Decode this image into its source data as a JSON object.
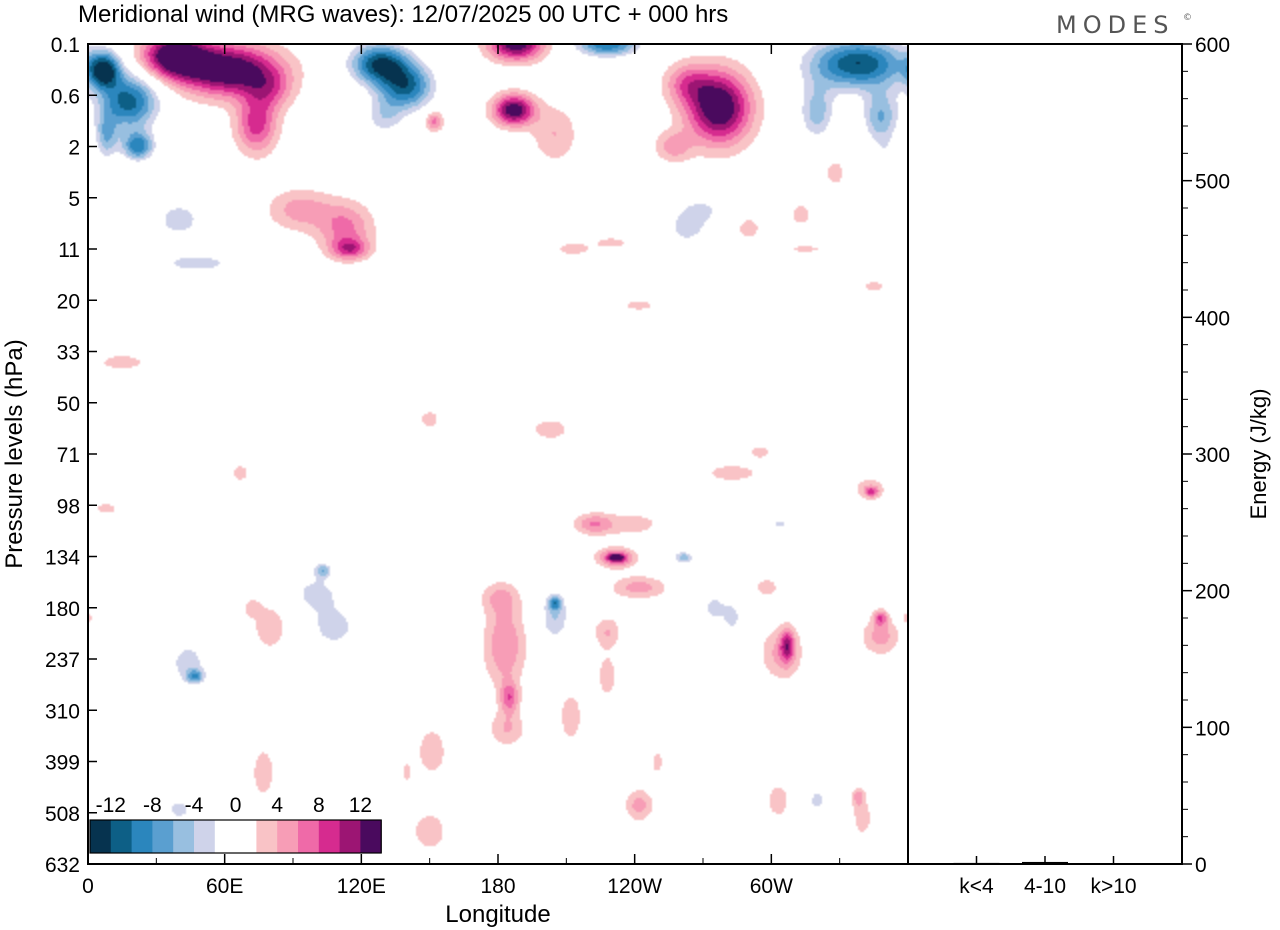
{
  "title": "Meridional wind (MRG waves):  12/07/2025  00 UTC  + 000 hrs",
  "logo": "MODES",
  "logo_mark": "©",
  "chart_data": [
    {
      "type": "heatmap",
      "xlabel": "Longitude",
      "ylabel": "Pressure levels (hPa)",
      "x_ticks": [
        "0",
        "60E",
        "120E",
        "180",
        "120W",
        "60W"
      ],
      "x_tick_values": [
        0,
        60,
        120,
        180,
        240,
        300
      ],
      "xlim": [
        0,
        360
      ],
      "y_ticks": [
        "0.1",
        "0.6",
        "2",
        "5",
        "11",
        "20",
        "33",
        "50",
        "71",
        "98",
        "134",
        "180",
        "237",
        "310",
        "399",
        "508",
        "632"
      ],
      "colorbar": {
        "labels": [
          "-12",
          "-8",
          "-4",
          "0",
          "4",
          "8",
          "12"
        ],
        "levels": [
          -14,
          -12,
          -10,
          -8,
          -6,
          -4,
          -2,
          2,
          4,
          6,
          8,
          10,
          12,
          14
        ],
        "colors": [
          "#06334f",
          "#0d5f86",
          "#2b86bd",
          "#5a9fd0",
          "#98bfe0",
          "#cfd3ea",
          "#ffffff",
          "#ffffff",
          "#f9c3c6",
          "#f79db6",
          "#ef6aa8",
          "#d62b8f",
          "#9c1573",
          "#4a0a5e"
        ]
      },
      "blobs": [
        {
          "lon": 7,
          "p": 0.25,
          "v": -14,
          "rx": 7,
          "ry": 0.35
        },
        {
          "lon": 18,
          "p": 0.7,
          "v": -13,
          "rx": 13,
          "ry": 0.55
        },
        {
          "lon": 22,
          "p": 2.0,
          "v": -11,
          "rx": 7,
          "ry": 0.28
        },
        {
          "lon": 8,
          "p": 1.6,
          "v": -7,
          "rx": 5,
          "ry": 0.45
        },
        {
          "lon": 38,
          "p": 0.15,
          "v": 15,
          "rx": 14,
          "ry": 0.42
        },
        {
          "lon": 62,
          "p": 0.25,
          "v": 15,
          "rx": 22,
          "ry": 0.5
        },
        {
          "lon": 74,
          "p": 1.2,
          "v": 9,
          "rx": 9,
          "ry": 0.55
        },
        {
          "lon": 80,
          "p": 0.5,
          "v": 5,
          "rx": 10,
          "ry": 0.4
        },
        {
          "lon": 128,
          "p": 0.2,
          "v": -14,
          "rx": 13,
          "ry": 0.4
        },
        {
          "lon": 140,
          "p": 0.45,
          "v": -12,
          "rx": 12,
          "ry": 0.45
        },
        {
          "lon": 130,
          "p": 1.0,
          "v": -5,
          "rx": 9,
          "ry": 0.4
        },
        {
          "lon": 152,
          "p": 1.1,
          "v": 7,
          "rx": 4,
          "ry": 0.2
        },
        {
          "lon": 188,
          "p": 0.1,
          "v": 14,
          "rx": 12,
          "ry": 0.32
        },
        {
          "lon": 187,
          "p": 0.85,
          "v": 14,
          "rx": 9,
          "ry": 0.3
        },
        {
          "lon": 205,
          "p": 1.5,
          "v": 4,
          "rx": 10,
          "ry": 0.55
        },
        {
          "lon": 228,
          "p": 0.1,
          "v": -12,
          "rx": 14,
          "ry": 0.25
        },
        {
          "lon": 225,
          "p": 1.4,
          "v": -4,
          "rx": 6,
          "ry": 0.4
        },
        {
          "lon": 171,
          "p": 2.5,
          "v": -4,
          "rx": 10,
          "ry": 0.3
        },
        {
          "lon": 277,
          "p": 0.8,
          "v": 15,
          "rx": 14,
          "ry": 0.7
        },
        {
          "lon": 263,
          "p": 0.4,
          "v": 6,
          "rx": 10,
          "ry": 0.4
        },
        {
          "lon": 257,
          "p": 2.0,
          "v": 5,
          "rx": 8,
          "ry": 0.3
        },
        {
          "lon": 338,
          "p": 0.2,
          "v": -14,
          "rx": 22,
          "ry": 0.5
        },
        {
          "lon": 320,
          "p": 0.9,
          "v": -7,
          "rx": 8,
          "ry": 0.55
        },
        {
          "lon": 348,
          "p": 1.0,
          "v": -8,
          "rx": 8,
          "ry": 0.5
        },
        {
          "lon": 350,
          "p": 2.5,
          "v": -3,
          "rx": 6,
          "ry": 0.4
        },
        {
          "lon": 328,
          "p": 3.2,
          "v": 3,
          "rx": 5,
          "ry": 0.3
        },
        {
          "lon": 40,
          "p": 7,
          "v": -5,
          "rx": 13,
          "ry": 0.45
        },
        {
          "lon": 48,
          "p": 13,
          "v": -5,
          "rx": 20,
          "ry": 0.22
        },
        {
          "lon": 55,
          "p": 20,
          "v": -2.5,
          "rx": 25,
          "ry": 0.3
        },
        {
          "lon": 20,
          "p": 4.2,
          "v": -3,
          "rx": 5,
          "ry": 0.2
        },
        {
          "lon": 93,
          "p": 6,
          "v": 5,
          "rx": 14,
          "ry": 0.4
        },
        {
          "lon": 113,
          "p": 8,
          "v": 6.5,
          "rx": 12,
          "ry": 0.5
        },
        {
          "lon": 115,
          "p": 11,
          "v": 7.5,
          "rx": 8,
          "ry": 0.2
        },
        {
          "lon": 158,
          "p": 10,
          "v": -3,
          "rx": 5,
          "ry": 0.2
        },
        {
          "lon": 213,
          "p": 11,
          "v": 3,
          "rx": 9,
          "ry": 0.15
        },
        {
          "lon": 230,
          "p": 10,
          "v": 3,
          "rx": 8,
          "ry": 0.12
        },
        {
          "lon": 242,
          "p": 21,
          "v": 3,
          "rx": 8,
          "ry": 0.12
        },
        {
          "lon": 263,
          "p": 8,
          "v": -5,
          "rx": 9,
          "ry": 0.35
        },
        {
          "lon": 270,
          "p": 6,
          "v": -4,
          "rx": 11,
          "ry": 0.3
        },
        {
          "lon": 290,
          "p": 8,
          "v": 3,
          "rx": 6,
          "ry": 0.25
        },
        {
          "lon": 313,
          "p": 6.5,
          "v": 3,
          "rx": 5,
          "ry": 0.25
        },
        {
          "lon": 345,
          "p": 9.5,
          "v": -3,
          "rx": 6,
          "ry": 0.15
        },
        {
          "lon": 345,
          "p": 17,
          "v": 3,
          "rx": 6,
          "ry": 0.12
        },
        {
          "lon": 315,
          "p": 11,
          "v": 3,
          "rx": 8,
          "ry": 0.08
        },
        {
          "lon": 213,
          "p": 5.5,
          "v": -3,
          "rx": 6,
          "ry": 0.2
        },
        {
          "lon": 15,
          "p": 36,
          "v": 3,
          "rx": 12,
          "ry": 0.18
        },
        {
          "lon": 60,
          "p": 56,
          "v": -3,
          "rx": 22,
          "ry": 0.14
        },
        {
          "lon": 150,
          "p": 56,
          "v": 3,
          "rx": 5,
          "ry": 0.2
        },
        {
          "lon": 203,
          "p": 60,
          "v": 3,
          "rx": 10,
          "ry": 0.25
        },
        {
          "lon": 285,
          "p": 37,
          "v": -3,
          "rx": 16,
          "ry": 0.22
        },
        {
          "lon": 278,
          "p": 50,
          "v": -3,
          "rx": 18,
          "ry": 0.12
        },
        {
          "lon": 350,
          "p": 45,
          "v": -3,
          "rx": 8,
          "ry": 0.12
        },
        {
          "lon": 283,
          "p": 80,
          "v": 3,
          "rx": 14,
          "ry": 0.2
        },
        {
          "lon": 295,
          "p": 70,
          "v": 3,
          "rx": 5,
          "ry": 0.15
        },
        {
          "lon": 343,
          "p": 88,
          "v": 3,
          "rx": 8,
          "ry": 0.25
        },
        {
          "lon": 344,
          "p": 90,
          "v": 7,
          "rx": 3,
          "ry": 0.1
        },
        {
          "lon": 300,
          "p": 100,
          "v": -3,
          "rx": 11,
          "ry": 0.18
        },
        {
          "lon": 304,
          "p": 110,
          "v": -5,
          "rx": 4,
          "ry": 0.08
        },
        {
          "lon": 67,
          "p": 80,
          "v": 3,
          "rx": 5,
          "ry": 0.2
        },
        {
          "lon": 110,
          "p": 80,
          "v": -3,
          "rx": 30,
          "ry": 0.08
        },
        {
          "lon": 8,
          "p": 100,
          "v": 3,
          "rx": 6,
          "ry": 0.12
        },
        {
          "lon": 258,
          "p": 90,
          "v": -3,
          "rx": 7,
          "ry": 0.4
        },
        {
          "lon": 20,
          "p": 260,
          "v": -3,
          "rx": 14,
          "ry": 0.25
        },
        {
          "lon": 44,
          "p": 240,
          "v": -5,
          "rx": 10,
          "ry": 0.45
        },
        {
          "lon": 47,
          "p": 260,
          "v": -8,
          "rx": 4,
          "ry": 0.14
        },
        {
          "lon": 40,
          "p": 500,
          "v": -5,
          "rx": 7,
          "ry": 0.25
        },
        {
          "lon": 45,
          "p": 600,
          "v": -3,
          "rx": 8,
          "ry": 0.3
        },
        {
          "lon": 4,
          "p": 400,
          "v": -3,
          "rx": 3,
          "ry": 0.2
        },
        {
          "lon": 27,
          "p": 550,
          "v": 3,
          "rx": 6,
          "ry": 0.3
        },
        {
          "lon": 22,
          "p": 420,
          "v": -3,
          "rx": 4,
          "ry": 0.2
        },
        {
          "lon": 80,
          "p": 200,
          "v": 4,
          "rx": 7,
          "ry": 0.42
        },
        {
          "lon": 77,
          "p": 420,
          "v": 3,
          "rx": 6,
          "ry": 0.6
        },
        {
          "lon": 72,
          "p": 180,
          "v": 3,
          "rx": 4,
          "ry": 0.2
        },
        {
          "lon": 65,
          "p": 270,
          "v": -2.5,
          "rx": 4,
          "ry": 0.2
        },
        {
          "lon": 100,
          "p": 165,
          "v": -5,
          "rx": 10,
          "ry": 0.35
        },
        {
          "lon": 108,
          "p": 200,
          "v": -5,
          "rx": 13,
          "ry": 0.5
        },
        {
          "lon": 103,
          "p": 145,
          "v": -7,
          "rx": 4,
          "ry": 0.15
        },
        {
          "lon": 112,
          "p": 330,
          "v": -3,
          "rx": 12,
          "ry": 0.45
        },
        {
          "lon": 95,
          "p": 450,
          "v": -3,
          "rx": 6,
          "ry": 0.35
        },
        {
          "lon": 132,
          "p": 180,
          "v": -3,
          "rx": 5,
          "ry": 0.4
        },
        {
          "lon": 150,
          "p": 150,
          "v": -4,
          "rx": 5,
          "ry": 0.3
        },
        {
          "lon": 150,
          "p": 230,
          "v": -3,
          "rx": 6,
          "ry": 0.3
        },
        {
          "lon": 151,
          "p": 380,
          "v": 4,
          "rx": 6,
          "ry": 0.45
        },
        {
          "lon": 150,
          "p": 550,
          "v": 4,
          "rx": 7,
          "ry": 0.35
        },
        {
          "lon": 140,
          "p": 420,
          "v": 2.5,
          "rx": 3,
          "ry": 0.3
        },
        {
          "lon": 183,
          "p": 220,
          "v": 6,
          "rx": 9,
          "ry": 0.8
        },
        {
          "lon": 181,
          "p": 170,
          "v": 4,
          "rx": 8,
          "ry": 0.3
        },
        {
          "lon": 184,
          "p": 340,
          "v": 4,
          "rx": 8,
          "ry": 0.35
        },
        {
          "lon": 185,
          "p": 290,
          "v": 7,
          "rx": 4,
          "ry": 0.3
        },
        {
          "lon": 205,
          "p": 190,
          "v": -6,
          "rx": 7,
          "ry": 0.5
        },
        {
          "lon": 205,
          "p": 175,
          "v": -8,
          "rx": 3,
          "ry": 0.14
        },
        {
          "lon": 203,
          "p": 140,
          "v": -3,
          "rx": 8,
          "ry": 0.2
        },
        {
          "lon": 222,
          "p": 110,
          "v": 5,
          "rx": 8,
          "ry": 0.2
        },
        {
          "lon": 232,
          "p": 135,
          "v": 9,
          "rx": 8,
          "ry": 0.18
        },
        {
          "lon": 232,
          "p": 135,
          "v": 12,
          "rx": 3,
          "ry": 0.06
        },
        {
          "lon": 242,
          "p": 160,
          "v": 5,
          "rx": 12,
          "ry": 0.22
        },
        {
          "lon": 228,
          "p": 205,
          "v": 4,
          "rx": 6,
          "ry": 0.3
        },
        {
          "lon": 228,
          "p": 260,
          "v": 3,
          "rx": 5,
          "ry": 0.5
        },
        {
          "lon": 212,
          "p": 320,
          "v": 3,
          "rx": 6,
          "ry": 0.6
        },
        {
          "lon": 240,
          "p": 110,
          "v": 3,
          "rx": 20,
          "ry": 0.25
        },
        {
          "lon": 258,
          "p": 120,
          "v": -3,
          "rx": 9,
          "ry": 0.5
        },
        {
          "lon": 262,
          "p": 135,
          "v": -6,
          "rx": 4,
          "ry": 0.1
        },
        {
          "lon": 275,
          "p": 180,
          "v": -5,
          "rx": 6,
          "ry": 0.3
        },
        {
          "lon": 283,
          "p": 190,
          "v": -5,
          "rx": 4,
          "ry": 0.3
        },
        {
          "lon": 276,
          "p": 360,
          "v": -3,
          "rx": 6,
          "ry": 0.55
        },
        {
          "lon": 262,
          "p": 450,
          "v": -2.5,
          "rx": 5,
          "ry": 0.6
        },
        {
          "lon": 250,
          "p": 400,
          "v": 2.5,
          "rx": 4,
          "ry": 0.35
        },
        {
          "lon": 242,
          "p": 490,
          "v": 5,
          "rx": 6,
          "ry": 0.3
        },
        {
          "lon": 235,
          "p": 350,
          "v": -2.5,
          "rx": 3,
          "ry": 0.2
        },
        {
          "lon": 305,
          "p": 230,
          "v": 5,
          "rx": 9,
          "ry": 0.5
        },
        {
          "lon": 307,
          "p": 220,
          "v": 8,
          "rx": 3,
          "ry": 0.3
        },
        {
          "lon": 298,
          "p": 160,
          "v": 3,
          "rx": 6,
          "ry": 0.2
        },
        {
          "lon": 322,
          "p": 250,
          "v": -3,
          "rx": 6,
          "ry": 0.6
        },
        {
          "lon": 330,
          "p": 420,
          "v": -4,
          "rx": 7,
          "ry": 0.45
        },
        {
          "lon": 320,
          "p": 480,
          "v": -5,
          "rx": 4,
          "ry": 0.25
        },
        {
          "lon": 303,
          "p": 480,
          "v": 3,
          "rx": 6,
          "ry": 0.4
        },
        {
          "lon": 340,
          "p": 520,
          "v": 3,
          "rx": 5,
          "ry": 0.4
        },
        {
          "lon": 338,
          "p": 470,
          "v": 5,
          "rx": 3,
          "ry": 0.2
        },
        {
          "lon": 348,
          "p": 210,
          "v": 5,
          "rx": 8,
          "ry": 0.35
        },
        {
          "lon": 348,
          "p": 190,
          "v": 7,
          "rx": 3,
          "ry": 0.15
        },
        {
          "lon": 355,
          "p": 380,
          "v": -3,
          "rx": 5,
          "ry": 0.45
        },
        {
          "lon": 0,
          "p": 190,
          "v": 2.5,
          "rx": 3,
          "ry": 0.15
        },
        {
          "lon": 290,
          "p": 580,
          "v": -2.5,
          "rx": 5,
          "ry": 0.3
        },
        {
          "lon": 200,
          "p": 560,
          "v": -2.5,
          "rx": 4,
          "ry": 0.2
        }
      ]
    },
    {
      "type": "bar",
      "ylabel": "Energy (J/kg)",
      "categories": [
        "k<4",
        "4-10",
        "k>10"
      ],
      "values": [
        0.8,
        1.5,
        0.5
      ],
      "ylim": [
        0,
        600
      ],
      "y_ticks": [
        "0",
        "100",
        "200",
        "300",
        "400",
        "500",
        "600"
      ]
    }
  ]
}
